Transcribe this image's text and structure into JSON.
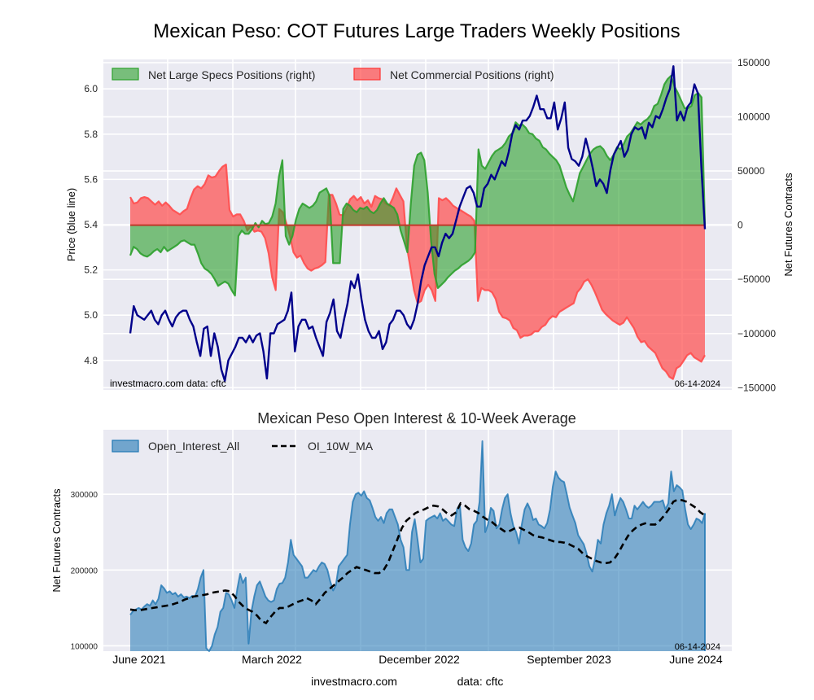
{
  "figure": {
    "title": "Mexican Peso: COT Futures Large Traders Weekly Positions",
    "footer_site": "investmacro.com",
    "footer_source": "data: cftc"
  },
  "chart_data": [
    {
      "type": "area",
      "title": "Mexican Peso: COT Futures Large Traders Weekly Positions",
      "ylabel_left": "Price (blue line)",
      "ylabel_right": "Net Futures Contracts",
      "ylim_left": [
        4.67,
        6.13
      ],
      "ylim_right": [
        -152000,
        153000
      ],
      "left_ticks": [
        "4.8",
        "5.0",
        "5.2",
        "5.4",
        "5.6",
        "5.8",
        "6.0"
      ],
      "left_tick_values": [
        4.8,
        5.0,
        5.2,
        5.4,
        5.6,
        5.8,
        6.0
      ],
      "right_ticks": [
        "−150000",
        "−100000",
        "−50000",
        "0",
        "50000",
        "100000",
        "150000"
      ],
      "right_tick_values": [
        -150000,
        -100000,
        -50000,
        0,
        50000,
        100000,
        150000
      ],
      "grid": true,
      "legend_position": "top-left",
      "annotation_left": "investmacro.com    data: cftc",
      "annotation_right": "06-14-2024",
      "x_range": [
        "2021-06-15",
        "2024-06-11"
      ],
      "series": [
        {
          "name": "Net Large Specs Positions (right)",
          "kind": "fill",
          "color": "#2ca02c",
          "values": [
            -28000,
            -20000,
            -22000,
            -26000,
            -28000,
            -29000,
            -27000,
            -24000,
            -22000,
            -25000,
            -20000,
            -24000,
            -22000,
            -20000,
            -18000,
            -15000,
            -14000,
            -16000,
            -18000,
            -18000,
            -26000,
            -35000,
            -40000,
            -42000,
            -45000,
            -50000,
            -56000,
            -54000,
            -52000,
            -54000,
            -60000,
            -65000,
            -10000,
            -5000,
            -8000,
            -8000,
            -4000,
            2000,
            -2000,
            4000,
            1000,
            2000,
            8000,
            20000,
            45000,
            60000,
            -10000,
            -18000,
            -10000,
            5000,
            15000,
            20000,
            18000,
            16000,
            18000,
            22000,
            30000,
            32000,
            34000,
            27000,
            -35000,
            -35000,
            -35000,
            15000,
            20000,
            18000,
            14000,
            12000,
            16000,
            15000,
            17000,
            13000,
            11000,
            14000,
            20000,
            25000,
            20000,
            18000,
            16000,
            10000,
            -5000,
            -15000,
            -25000,
            20000,
            55000,
            65000,
            67000,
            60000,
            30000,
            -15000,
            -45000,
            -58000,
            -55000,
            -52000,
            -48000,
            -45000,
            -42000,
            -40000,
            -37000,
            -35000,
            -33000,
            -30000,
            -25000,
            70000,
            55000,
            52000,
            58000,
            64000,
            68000,
            70000,
            72000,
            76000,
            82000,
            85000,
            95000,
            92000,
            93000,
            90000,
            85000,
            84000,
            80000,
            78000,
            72000,
            70000,
            66000,
            63000,
            60000,
            55000,
            45000,
            35000,
            28000,
            22000,
            35000,
            48000,
            54000,
            60000,
            66000,
            70000,
            72000,
            73000,
            70000,
            64000,
            60000,
            65000,
            72000,
            70000,
            75000,
            82000,
            85000,
            90000,
            95000,
            93000,
            96000,
            98000,
            102000,
            110000,
            112000,
            120000,
            130000,
            135000,
            138000,
            128000,
            122000,
            115000,
            108000,
            108000,
            110000,
            120000,
            122000,
            118000,
            0
          ]
        },
        {
          "name": "Net Commercial Positions (right)",
          "kind": "fill",
          "color": "#ff4c4c",
          "values": [
            26000,
            20000,
            21000,
            25000,
            26000,
            25000,
            22000,
            19000,
            22000,
            18000,
            21000,
            18000,
            14000,
            12000,
            10000,
            13000,
            15000,
            25000,
            33000,
            36000,
            34000,
            38000,
            46000,
            44000,
            45000,
            50000,
            54000,
            56000,
            14000,
            8000,
            10000,
            10000,
            4000,
            -5000,
            -1000,
            -6000,
            -5000,
            -6000,
            -12000,
            -26000,
            -48000,
            -60000,
            15000,
            12000,
            2000,
            -10000,
            -25000,
            -30000,
            -28000,
            -35000,
            -40000,
            -42000,
            -40000,
            -39000,
            -37000,
            -34000,
            28000,
            28000,
            20000,
            10000,
            9000,
            16000,
            24000,
            27000,
            23000,
            26000,
            20000,
            23000,
            17000,
            27000,
            25000,
            24000,
            20000,
            18000,
            25000,
            34000,
            28000,
            22000,
            -20000,
            -40000,
            -60000,
            -72000,
            -70000,
            -60000,
            -55000,
            -60000,
            -70000,
            25000,
            23000,
            25000,
            22000,
            18000,
            16000,
            14000,
            12000,
            10000,
            8000,
            4000,
            -70000,
            -58000,
            -60000,
            -60000,
            -62000,
            -68000,
            -80000,
            -85000,
            -86000,
            -88000,
            -95000,
            -97000,
            -104000,
            -102000,
            -102000,
            -101000,
            -98000,
            -98000,
            -94000,
            -92000,
            -87000,
            -84000,
            -85000,
            -80000,
            -78000,
            -76000,
            -74000,
            -72000,
            -62000,
            -58000,
            -52000,
            -50000,
            -55000,
            -62000,
            -70000,
            -78000,
            -82000,
            -85000,
            -88000,
            -90000,
            -92000,
            -90000,
            -85000,
            -90000,
            -95000,
            -103000,
            -108000,
            -107000,
            -112000,
            -115000,
            -118000,
            -125000,
            -132000,
            -135000,
            -140000,
            -142000,
            -132000,
            -130000,
            -125000,
            -120000,
            -118000,
            -122000,
            -124000,
            -126000,
            -120000
          ]
        },
        {
          "name": "Price (blue line)",
          "kind": "line",
          "axis": "left",
          "color": "#00008b",
          "values": [
            4.92,
            5.04,
            5.0,
            4.99,
            4.98,
            5.0,
            5.02,
            4.98,
            4.96,
            5.0,
            5.02,
            4.98,
            4.95,
            4.99,
            5.01,
            5.02,
            5.02,
            4.98,
            4.95,
            4.88,
            4.82,
            4.94,
            4.95,
            4.82,
            4.92,
            4.86,
            4.76,
            4.71,
            4.8,
            4.83,
            4.86,
            4.9,
            4.9,
            4.88,
            4.91,
            4.88,
            4.91,
            4.92,
            4.84,
            4.72,
            4.92,
            4.92,
            4.96,
            4.97,
            4.98,
            5.02,
            5.1,
            4.84,
            4.95,
            4.98,
            4.98,
            4.94,
            4.95,
            4.9,
            4.86,
            4.82,
            4.97,
            5.01,
            5.07,
            4.93,
            4.9,
            4.98,
            5.05,
            5.15,
            5.12,
            5.18,
            5.07,
            4.98,
            4.93,
            4.9,
            4.9,
            4.93,
            4.85,
            4.88,
            4.96,
            4.98,
            5.02,
            5.02,
            5.0,
            4.96,
            4.94,
            4.98,
            5.05,
            5.15,
            5.22,
            5.26,
            5.3,
            5.3,
            5.26,
            5.32,
            5.36,
            5.34,
            5.36,
            5.42,
            5.48,
            5.52,
            5.56,
            5.57,
            5.54,
            5.48,
            5.48,
            5.56,
            5.58,
            5.62,
            5.6,
            5.64,
            5.68,
            5.66,
            5.72,
            5.8,
            5.84,
            5.82,
            5.86,
            5.86,
            5.88,
            5.92,
            5.97,
            5.91,
            5.91,
            5.87,
            5.87,
            5.94,
            5.82,
            5.87,
            5.94,
            5.74,
            5.69,
            5.68,
            5.66,
            5.7,
            5.78,
            5.72,
            5.65,
            5.57,
            5.6,
            5.58,
            5.54,
            5.64,
            5.71,
            5.74,
            5.77,
            5.7,
            5.73,
            5.8,
            5.83,
            5.82,
            5.83,
            5.78,
            5.85,
            5.83,
            5.88,
            5.87,
            5.91,
            5.96,
            6.0,
            6.1,
            5.86,
            5.9,
            5.86,
            5.92,
            5.94,
            6.02,
            5.98,
            5.65,
            5.38
          ]
        }
      ]
    },
    {
      "type": "area",
      "title": "Mexican Peso Open Interest & 10-Week Average",
      "ylabel": "Net Futures Contracts",
      "ylim": [
        93000,
        385000
      ],
      "y_ticks": [
        "100000",
        "200000",
        "300000"
      ],
      "y_tick_values": [
        100000,
        200000,
        300000
      ],
      "x_ticks": [
        "June 2021",
        "March 2022",
        "December 2022",
        "September 2023",
        "June 2024"
      ],
      "grid": true,
      "legend_position": "top-left",
      "annotation_right": "06-14-2024",
      "series": [
        {
          "name": "Open_Interest_All",
          "kind": "fill",
          "color": "#1f77b4",
          "values": [
            141000,
            146000,
            148000,
            150000,
            148000,
            152000,
            155000,
            153000,
            160000,
            155000,
            162000,
            180000,
            176000,
            170000,
            172000,
            168000,
            170000,
            165000,
            168000,
            164000,
            165000,
            163000,
            166000,
            165000,
            175000,
            190000,
            200000,
            97000,
            93000,
            100000,
            115000,
            125000,
            145000,
            150000,
            170000,
            168000,
            160000,
            150000,
            175000,
            195000,
            183000,
            190000,
            103000,
            145000,
            165000,
            180000,
            185000,
            175000,
            165000,
            160000,
            158000,
            160000,
            175000,
            182000,
            183000,
            190000,
            210000,
            240000,
            220000,
            215000,
            210000,
            205000,
            190000,
            190000,
            195000,
            200000,
            198000,
            205000,
            210000,
            208000,
            200000,
            185000,
            173000,
            180000,
            205000,
            210000,
            215000,
            220000,
            260000,
            290000,
            300000,
            302000,
            298000,
            304000,
            295000,
            292000,
            282000,
            270000,
            265000,
            270000,
            262000,
            275000,
            280000,
            280000,
            270000,
            260000,
            240000,
            230000,
            200000,
            200000,
            250000,
            267000,
            240000,
            210000,
            215000,
            265000,
            268000,
            270000,
            272000,
            268000,
            275000,
            265000,
            268000,
            264000,
            260000,
            258000,
            280000,
            287000,
            240000,
            230000,
            225000,
            235000,
            260000,
            265000,
            290000,
            370000,
            250000,
            260000,
            282000,
            278000,
            255000,
            260000,
            280000,
            295000,
            300000,
            275000,
            258000,
            250000,
            235000,
            260000,
            280000,
            288000,
            280000,
            266000,
            268000,
            260000,
            258000,
            255000,
            262000,
            280000,
            310000,
            330000,
            322000,
            318000,
            316000,
            300000,
            282000,
            272000,
            262000,
            246000,
            240000,
            234000,
            222000,
            205000,
            198000,
            215000,
            240000,
            235000,
            260000,
            275000,
            285000,
            300000,
            272000,
            285000,
            295000,
            290000,
            280000,
            268000,
            268000,
            285000,
            280000,
            285000,
            290000,
            285000,
            282000,
            285000,
            290000,
            290000,
            290000,
            292000,
            280000,
            288000,
            330000,
            304000,
            312000,
            309000,
            305000,
            280000,
            260000,
            254000,
            260000,
            268000,
            266000,
            262000,
            275000
          ]
        },
        {
          "name": "OI_10W_MA",
          "kind": "line",
          "style": "dashed",
          "color": "#000000",
          "values": [
            148000,
            147000,
            147000,
            148000,
            149000,
            150000,
            151000,
            152000,
            153000,
            154000,
            156000,
            158000,
            161000,
            163000,
            165000,
            166000,
            167000,
            168000,
            170000,
            171000,
            172000,
            173000,
            172000,
            166000,
            158000,
            152000,
            148000,
            145000,
            140000,
            133000,
            130000,
            138000,
            145000,
            150000,
            150000,
            152000,
            155000,
            158000,
            160000,
            163000,
            160000,
            155000,
            162000,
            170000,
            175000,
            180000,
            185000,
            190000,
            196000,
            200000,
            204000,
            202000,
            200000,
            198000,
            196000,
            196000,
            200000,
            210000,
            225000,
            240000,
            255000,
            265000,
            270000,
            275000,
            278000,
            280000,
            283000,
            285000,
            284000,
            280000,
            275000,
            272000,
            276000,
            288000,
            285000,
            280000,
            278000,
            275000,
            270000,
            266000,
            263000,
            258000,
            254000,
            250000,
            252000,
            255000,
            256000,
            253000,
            250000,
            246000,
            244000,
            243000,
            241000,
            239000,
            237000,
            237000,
            236000,
            234000,
            231000,
            228000,
            222000,
            218000,
            215000,
            212000,
            210000,
            209000,
            210000,
            215000,
            224000,
            235000,
            245000,
            252000,
            257000,
            260000,
            262000,
            260000,
            260000,
            265000,
            272000,
            280000,
            290000,
            293000,
            292000,
            290000,
            286000,
            282000,
            276000,
            272000
          ]
        }
      ]
    }
  ]
}
